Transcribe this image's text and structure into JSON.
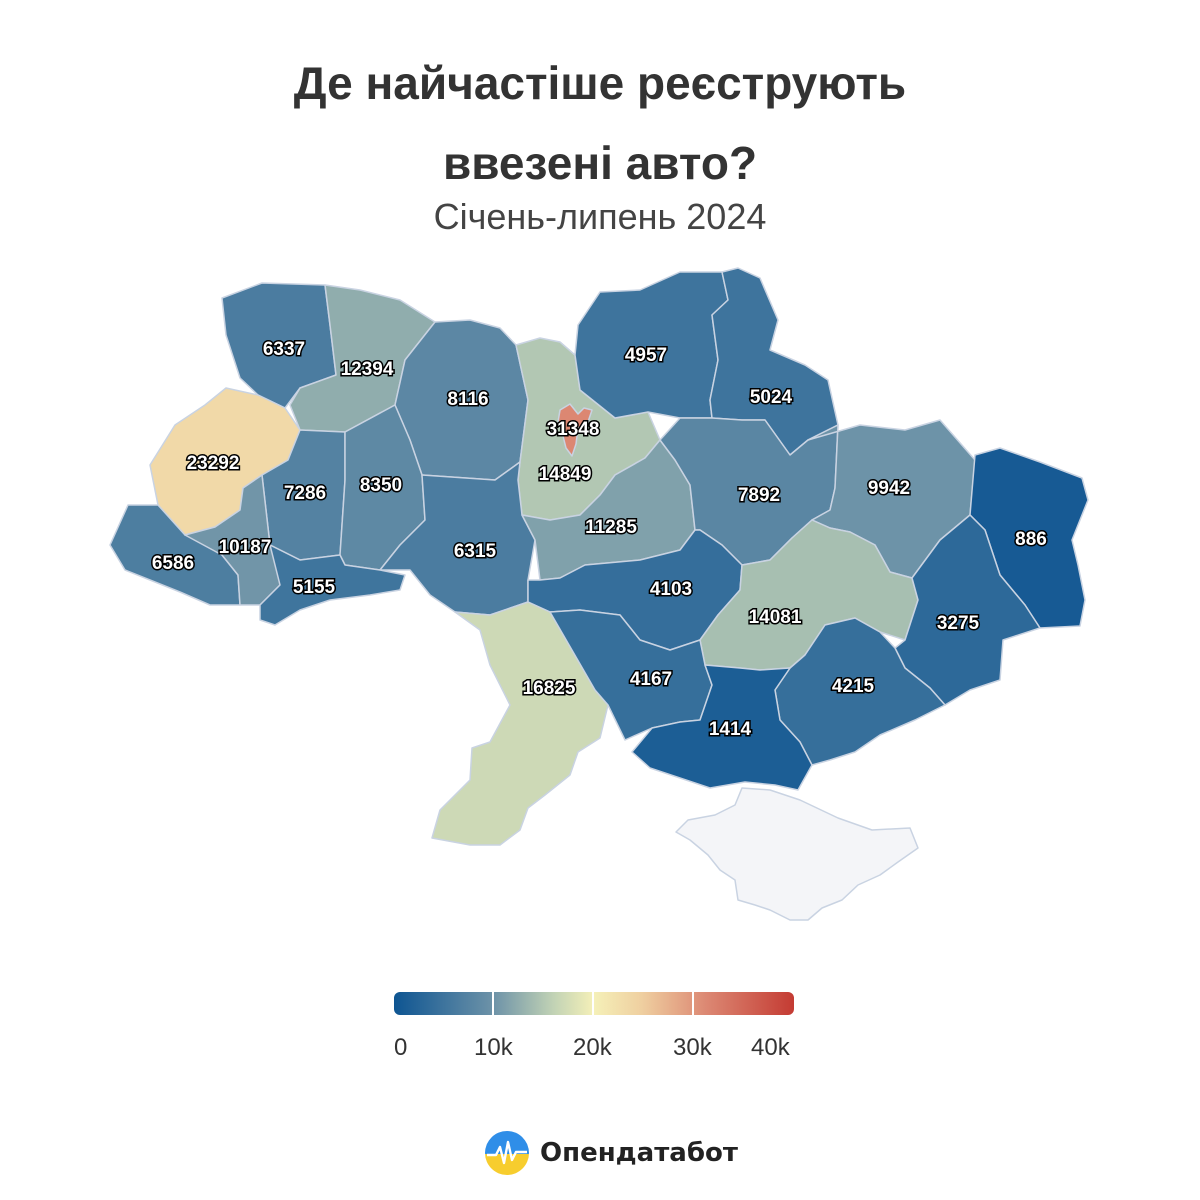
{
  "title": {
    "line1": "Де найчастіше реєструють",
    "line2": "ввезені авто?",
    "subtitle": "Січень-липень 2024"
  },
  "legend": {
    "ticks": [
      "0",
      "10k",
      "20k",
      "30k",
      "40k"
    ],
    "colors": [
      "#0e5592",
      "#4a7ea3",
      "#95b4ad",
      "#f5f0b8",
      "#efcfa0",
      "#e4967a",
      "#c43b33"
    ]
  },
  "chart_data": {
    "type": "choropleth",
    "title": "Де найчастіше реєструють ввезені авто?",
    "subtitle": "Січень-липень 2024",
    "scale": {
      "min": 0,
      "max": 40000
    },
    "values": [
      6337,
      12394,
      8116,
      31348,
      14849,
      4957,
      5024,
      23292,
      7286,
      8350,
      6315,
      11285,
      7892,
      9942,
      886,
      6586,
      10187,
      5155,
      4103,
      14081,
      3275,
      16825,
      4167,
      4215,
      1414
    ]
  },
  "brand": {
    "name": "Опендатабот",
    "logo_icon": "opendatabot-logo-icon"
  }
}
